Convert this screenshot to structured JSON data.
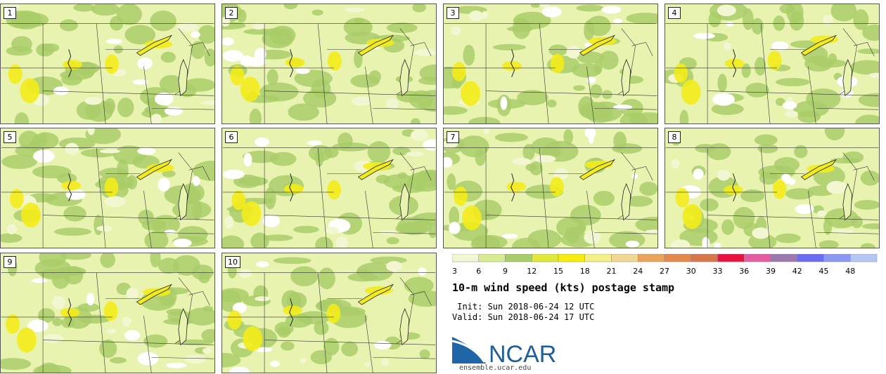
{
  "panels": [
    {
      "label": "1"
    },
    {
      "label": "2"
    },
    {
      "label": "3"
    },
    {
      "label": "4"
    },
    {
      "label": "5"
    },
    {
      "label": "6"
    },
    {
      "label": "7"
    },
    {
      "label": "8"
    },
    {
      "label": "9"
    },
    {
      "label": "10"
    }
  ],
  "legend": {
    "tick_labels": [
      "3",
      "6",
      "9",
      "12",
      "15",
      "18",
      "21",
      "24",
      "27",
      "30",
      "33",
      "36",
      "39",
      "42",
      "45",
      "48"
    ],
    "colors": [
      "#f2f7d2",
      "#d8ea93",
      "#a9cd6a",
      "#dfe93a",
      "#f6ec10",
      "#f6ee8a",
      "#f2d895",
      "#eaa55c",
      "#e3894b",
      "#d7774b",
      "#ea123f",
      "#e65ca2",
      "#9c79ac",
      "#6b6cf0",
      "#8a98f2",
      "#b7c7f5"
    ]
  },
  "title": "10-m wind speed (kts) postage stamp",
  "init_line": " Init: Sun 2018-06-24 12 UTC",
  "valid_line": "Valid: Sun 2018-06-24 17 UTC",
  "logo": {
    "text": "NCAR",
    "url": "ensemble.ucar.edu"
  }
}
